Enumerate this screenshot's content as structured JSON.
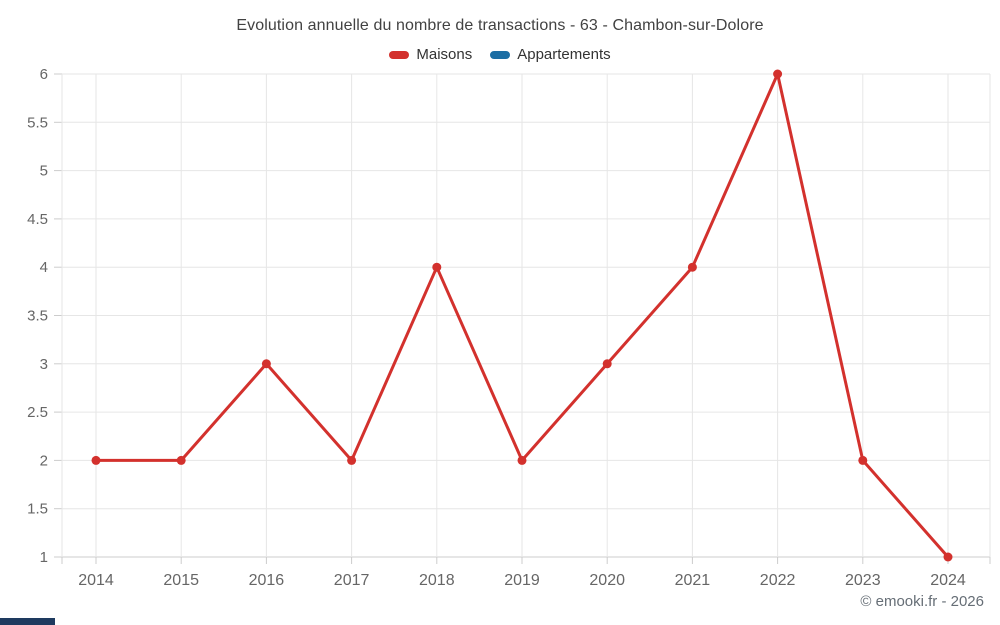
{
  "title": "Evolution annuelle du nombre de transactions - 63 - Chambon-sur-Dolore",
  "legend": [
    {
      "label": "Maisons",
      "color": "#d3312d"
    },
    {
      "label": "Appartements",
      "color": "#1c6ea4"
    }
  ],
  "footer": {
    "copyright": "© emooki.fr - 2026"
  },
  "colors": {
    "title_text": "#424242",
    "legend_text": "#333333",
    "axis_label_text": "#666666",
    "gridline": "#e6e6e6",
    "axis_line": "#cccccc",
    "tick": "#cccccc",
    "brand_bar": "#1e3a5f"
  },
  "chart_data": {
    "type": "line",
    "x": [
      2014,
      2015,
      2016,
      2017,
      2018,
      2019,
      2020,
      2021,
      2022,
      2023,
      2024
    ],
    "series": [
      {
        "name": "Maisons",
        "color": "#d3312d",
        "values": [
          2,
          2,
          3,
          2,
          4,
          2,
          3,
          4,
          6,
          2,
          1
        ]
      },
      {
        "name": "Appartements",
        "color": "#1c6ea4",
        "values": []
      }
    ],
    "title": "Evolution annuelle du nombre de transactions - 63 - Chambon-sur-Dolore",
    "xlabel": "",
    "ylabel": "",
    "ylim": [
      1,
      6
    ],
    "ytick_step": 0.5,
    "grid": true,
    "legend_position": "top",
    "marker": "circle"
  }
}
